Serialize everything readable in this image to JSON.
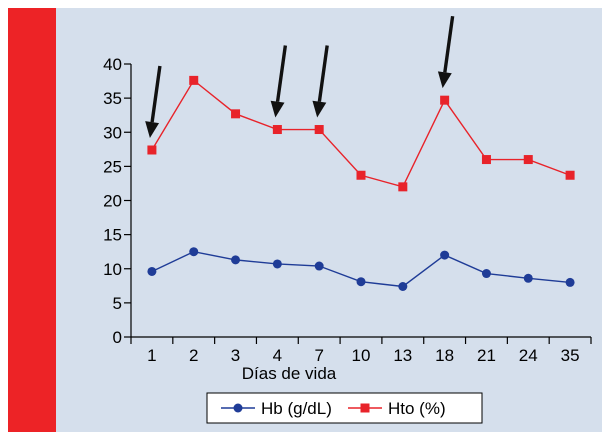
{
  "colors": {
    "accent_bar": "#ed2326",
    "panel_background": "#d5dfec",
    "hb_series": "#1f3c97",
    "hto_series": "#e8232a",
    "arrow": "#111111"
  },
  "chart_data": {
    "type": "line",
    "xlabel": "Días de vida",
    "ylabel": "",
    "categories": [
      "1",
      "2",
      "3",
      "4",
      "7",
      "10",
      "13",
      "18",
      "21",
      "24",
      "35"
    ],
    "ylim": [
      0,
      40
    ],
    "yticks": [
      0,
      5,
      10,
      15,
      20,
      25,
      30,
      35,
      40
    ],
    "grid": false,
    "legend_position": "bottom",
    "series": [
      {
        "name": "Hb (g/dL)",
        "marker": "circle",
        "color": "#1f3c97",
        "values": [
          9.6,
          12.5,
          11.3,
          10.7,
          10.4,
          8.1,
          7.4,
          12.0,
          9.3,
          8.6,
          8.0
        ]
      },
      {
        "name": "Hto (%)",
        "marker": "square",
        "color": "#e8232a",
        "values": [
          27.4,
          37.6,
          32.7,
          30.4,
          30.4,
          23.7,
          22.0,
          34.7,
          26.0,
          26.0,
          23.7
        ]
      }
    ],
    "annotations": {
      "type": "arrows",
      "description_points": [
        "1",
        "4",
        "7",
        "18"
      ]
    }
  }
}
